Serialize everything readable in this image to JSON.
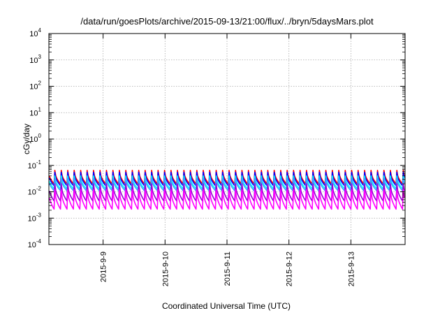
{
  "chart_data": {
    "type": "line",
    "title": "/data/run/goesPlots/archive/2015-09-13/21:00/flux/../bryn/5daysMars.plot",
    "xlabel": "Coordinated Universal Time (UTC)",
    "ylabel": "cGy/day",
    "yscale": "log",
    "ylim": [
      0.0001,
      10000
    ],
    "xlim": [
      "2015-09-08 03:00",
      "2015-09-13 21:00"
    ],
    "grid": true,
    "yticks": [
      {
        "base": "10",
        "exp": "-4",
        "value": 0.0001
      },
      {
        "base": "10",
        "exp": "-3",
        "value": 0.001
      },
      {
        "base": "10",
        "exp": "-2",
        "value": 0.01
      },
      {
        "base": "10",
        "exp": "-1",
        "value": 0.1
      },
      {
        "base": "10",
        "exp": "0",
        "value": 1
      },
      {
        "base": "10",
        "exp": "1",
        "value": 10
      },
      {
        "base": "10",
        "exp": "2",
        "value": 100
      },
      {
        "base": "10",
        "exp": "3",
        "value": 1000
      },
      {
        "base": "10",
        "exp": "4",
        "value": 10000
      }
    ],
    "xticks": [
      "2015-9-9",
      "2015-9-10",
      "2015-9-11",
      "2015-9-12",
      "2015-9-13"
    ],
    "xtick_times": [
      "2015-09-09 00:00",
      "2015-09-10 00:00",
      "2015-09-11 00:00",
      "2015-09-12 00:00",
      "2015-09-13 00:00"
    ],
    "pattern": {
      "description_period_hours": 2.5,
      "note": "sawtooth: rapid rise then decay each period"
    },
    "series": [
      {
        "color": "#ff0000",
        "peak": 0.065,
        "trough": 0.02
      },
      {
        "color": "#0000ff",
        "peak": 0.055,
        "trough": 0.017
      },
      {
        "color": "#00ffff",
        "peak": 0.04,
        "trough": 0.013
      },
      {
        "color": "#40a0ff",
        "peak": 0.032,
        "trough": 0.011
      },
      {
        "color": "#9400d3",
        "peak": 0.02,
        "trough": 0.0045
      },
      {
        "color": "#ff00ff",
        "peak": 0.012,
        "trough": 0.0022
      }
    ]
  }
}
